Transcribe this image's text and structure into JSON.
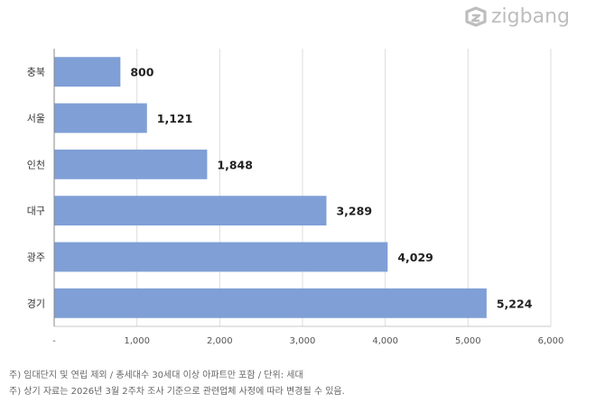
{
  "brand": {
    "name": "zigbang"
  },
  "chart_data": {
    "type": "bar",
    "orientation": "horizontal",
    "categories": [
      "충북",
      "서울",
      "인천",
      "대구",
      "광주",
      "경기"
    ],
    "values": [
      800,
      1121,
      1848,
      3289,
      4029,
      5224
    ],
    "value_labels": [
      "800",
      "1,121",
      "1,848",
      "3,289",
      "4,029",
      "5,224"
    ],
    "x_ticks": [
      0,
      1000,
      2000,
      3000,
      4000,
      5000,
      6000
    ],
    "x_tick_labels": [
      "-",
      "1,000",
      "2,000",
      "3,000",
      "4,000",
      "5,000",
      "6,000"
    ],
    "xlim": [
      0,
      6000
    ],
    "grid": "vertical",
    "legend": "none",
    "bar_color": "#7f9fd6"
  },
  "notes": [
    "주) 임대단지 및 연립 제외 / 총세대수 30세대 이상 아파트만 포함 / 단위: 세대",
    "주) 상기 자료는 2026년 3월 2주차 조사 기준으로 관련업체 사정에 따라 변경될 수 있음."
  ]
}
